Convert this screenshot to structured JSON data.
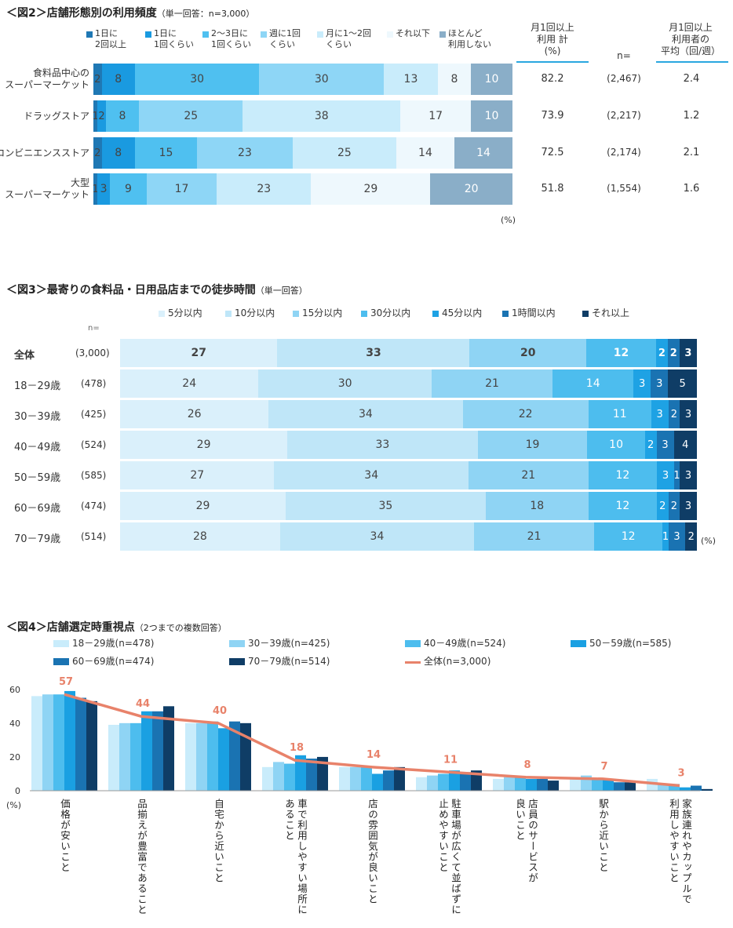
{
  "fig2": {
    "title": "＜図2＞店舗形態別の利用頻度",
    "subtitle": "（単一回答：n=3,000）",
    "legend": [
      "1日に\n2回以上",
      "1日に\n1回くらい",
      "2～3日に\n1回くらい",
      "週に1回\nくらい",
      "月に1～2回\nくらい",
      "それ以下",
      "ほとんど\n利用しない"
    ],
    "col_headers": {
      "monthly": "月1回以上\n利用 計\n(%)",
      "n": "n=",
      "avg": "月1回以上\n利用者の\n平均（回/週）"
    },
    "pct_note": "(%)",
    "colors": [
      "#1f78b4",
      "#1a9ae0",
      "#4fc0f0",
      "#8ed6f6",
      "#c9ecfb",
      "#eef8fd",
      "#8aaec8"
    ]
  },
  "fig3": {
    "title": "＜図3＞最寄りの食料品・日用品店までの徒歩時間",
    "subtitle": "（単一回答）",
    "legend": [
      "5分以内",
      "10分以内",
      "15分以内",
      "30分以内",
      "45分以内",
      "1時間以内",
      "それ以上"
    ],
    "n_label": "n=",
    "pct_note": "(%)",
    "colors": [
      "#daf0fb",
      "#bfe6f8",
      "#8fd4f4",
      "#4dbdee",
      "#1ea2e4",
      "#1a73b2",
      "#0f3d66"
    ]
  },
  "fig4": {
    "title": "＜図4＞店舗選定時重視点",
    "subtitle": "（2つまでの複数回答）",
    "legend": [
      "18－29歳(n=478)",
      "30－39歳(n=425)",
      "40－49歳(n=524)",
      "50－59歳(n=585)",
      "60－69歳(n=474)",
      "70－79歳(n=514)",
      "全体(n=3,000)"
    ],
    "pct_note": "(%)",
    "colors": [
      "#c9ecfb",
      "#8fd4f4",
      "#4dbdee",
      "#1aa0e2",
      "#1a73b2",
      "#0f3d66"
    ],
    "line_color": "#e8826a"
  },
  "chart_data": [
    {
      "type": "bar",
      "orientation": "horizontal-stacked-100",
      "title": "＜図2＞店舗形態別の利用頻度（単一回答：n=3,000）",
      "categories": [
        "食料品中心の\nスーパーマーケット",
        "ドラッグストア",
        "コンビニエンスストア",
        "大型\nスーパーマーケット"
      ],
      "series": [
        {
          "name": "1日に2回以上",
          "values": [
            2,
            1,
            2,
            1
          ]
        },
        {
          "name": "1日に1回くらい",
          "values": [
            8,
            2,
            8,
            3
          ]
        },
        {
          "name": "2～3日に1回くらい",
          "values": [
            30,
            8,
            15,
            9
          ]
        },
        {
          "name": "週に1回くらい",
          "values": [
            30,
            25,
            23,
            17
          ]
        },
        {
          "name": "月に1～2回くらい",
          "values": [
            13,
            38,
            25,
            23
          ]
        },
        {
          "name": "それ以下",
          "values": [
            8,
            17,
            14,
            29
          ]
        },
        {
          "name": "ほとんど利用しない",
          "values": [
            10,
            10,
            14,
            20
          ]
        }
      ],
      "monthly_total": [
        "82.2",
        "73.9",
        "72.5",
        "51.8"
      ],
      "n": [
        "(2,467)",
        "(2,217)",
        "(2,174)",
        "(1,554)"
      ],
      "avg_per_week": [
        "2.4",
        "1.2",
        "2.1",
        "1.6"
      ],
      "unit": "%"
    },
    {
      "type": "bar",
      "orientation": "horizontal-stacked-100",
      "title": "＜図3＞最寄りの食料品・日用品店までの徒歩時間（単一回答）",
      "categories": [
        "全体",
        "18－29歳",
        "30－39歳",
        "40－49歳",
        "50－59歳",
        "60－69歳",
        "70－79歳"
      ],
      "n": [
        "(3,000)",
        "(478)",
        "(425)",
        "(524)",
        "(585)",
        "(474)",
        "(514)"
      ],
      "series": [
        {
          "name": "5分以内",
          "values": [
            27,
            24,
            26,
            29,
            27,
            29,
            28
          ]
        },
        {
          "name": "10分以内",
          "values": [
            33,
            30,
            34,
            33,
            34,
            35,
            34
          ]
        },
        {
          "name": "15分以内",
          "values": [
            20,
            21,
            22,
            19,
            21,
            18,
            21
          ]
        },
        {
          "name": "30分以内",
          "values": [
            12,
            14,
            11,
            10,
            12,
            12,
            12
          ]
        },
        {
          "name": "45分以内",
          "values": [
            2,
            3,
            3,
            2,
            3,
            2,
            1
          ]
        },
        {
          "name": "1時間以内",
          "values": [
            2,
            3,
            2,
            3,
            1,
            2,
            3
          ]
        },
        {
          "name": "それ以上",
          "values": [
            3,
            5,
            3,
            4,
            3,
            3,
            2
          ]
        }
      ],
      "unit": "%"
    },
    {
      "type": "bar",
      "subtype": "grouped-bar-with-line",
      "title": "＜図4＞店舗選定時重視点（2つまでの複数回答）",
      "categories": [
        "価格が安いこと",
        "品揃えが豊富であること",
        "自宅から近いこと",
        "車で利用しやすい場所にあること",
        "店の雰囲気が良いこと",
        "駐車場が広くて並ばずに止めやすいこと",
        "店員のサービスが良いこと",
        "駅から近いこと",
        "家族連れやカップルで利用しやすいこと"
      ],
      "category_lines": [
        [
          "価格が安いこと"
        ],
        [
          "品揃えが豊富であること"
        ],
        [
          "自宅から近いこと"
        ],
        [
          "車で利用しやすい場所に",
          "あること"
        ],
        [
          "店の雰囲気が良いこと"
        ],
        [
          "駐車場が広くて並ばずに",
          "止めやすいこと"
        ],
        [
          "店員のサービスが",
          "良いこと"
        ],
        [
          "駅から近いこと"
        ],
        [
          "家族連れやカップルで",
          "利用しやすいこと"
        ]
      ],
      "series": [
        {
          "name": "18－29歳(n=478)",
          "values": [
            56,
            39,
            40,
            14,
            14,
            8,
            7,
            7,
            7
          ]
        },
        {
          "name": "30－39歳(n=425)",
          "values": [
            57,
            40,
            40,
            17,
            14,
            9,
            8,
            9,
            4
          ]
        },
        {
          "name": "40－49歳(n=524)",
          "values": [
            57,
            40,
            41,
            16,
            14,
            10,
            8,
            7,
            4
          ]
        },
        {
          "name": "50－59歳(n=585)",
          "values": [
            59,
            47,
            37,
            21,
            10,
            12,
            7,
            7,
            2
          ]
        },
        {
          "name": "60－69歳(n=474)",
          "values": [
            55,
            47,
            41,
            19,
            12,
            11,
            7,
            5,
            3
          ]
        },
        {
          "name": "70－79歳(n=514)",
          "values": [
            53,
            50,
            40,
            20,
            14,
            12,
            6,
            5,
            1
          ]
        }
      ],
      "line": {
        "name": "全体(n=3,000)",
        "values": [
          57,
          44,
          40,
          18,
          14,
          11,
          8,
          7,
          3
        ]
      },
      "yticks": [
        0,
        20,
        40,
        60
      ],
      "ylim": [
        0,
        65
      ],
      "ylabel": "(%)"
    }
  ]
}
